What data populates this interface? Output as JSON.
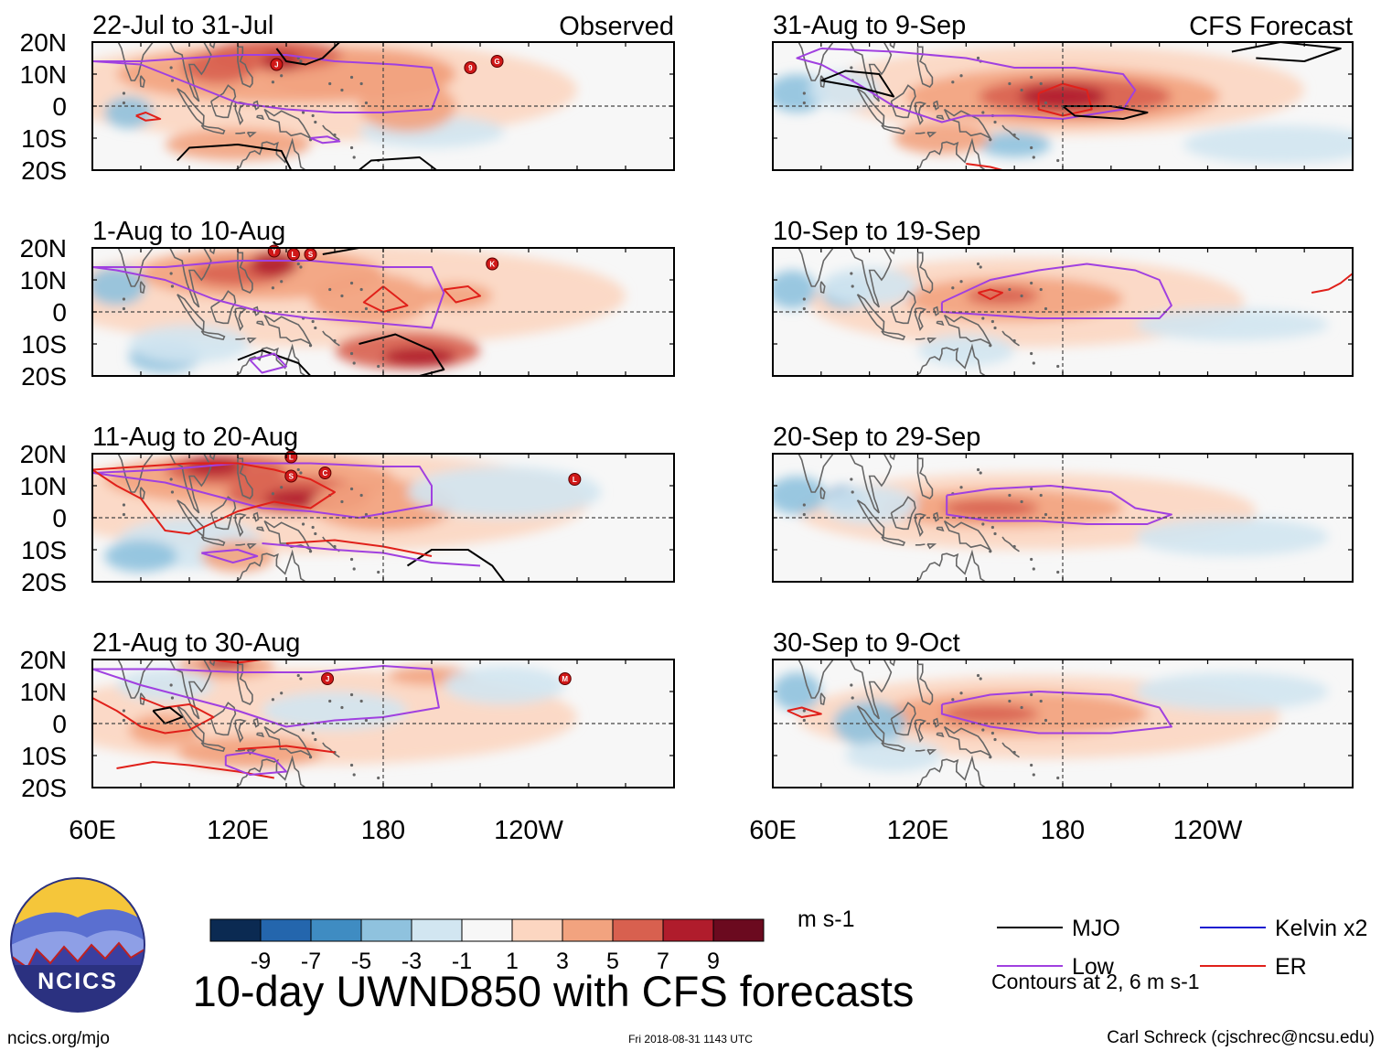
{
  "title": "10-day UWND850 with CFS forecasts",
  "org": {
    "logo_text": "NCICS",
    "url": "ncics.org/mjo"
  },
  "timestamp": "Fri 2018-08-31 1143 UTC",
  "credit": "Carl Schreck (cjschrec@ncsu.edu)",
  "columns": {
    "observed": "Observed",
    "forecast": "CFS Forecast"
  },
  "panels": [
    {
      "label": "22-Jul to 31-Jul",
      "storms": [
        "J",
        "9",
        "G"
      ]
    },
    {
      "label": "31-Aug to 9-Sep",
      "storms": []
    },
    {
      "label": "1-Aug to 10-Aug",
      "storms": [
        "Y",
        "L",
        "S",
        "K"
      ]
    },
    {
      "label": "10-Sep to 19-Sep",
      "storms": []
    },
    {
      "label": "11-Aug to 20-Aug",
      "storms": [
        "L",
        "S",
        "C",
        "L"
      ]
    },
    {
      "label": "20-Sep to 29-Sep",
      "storms": []
    },
    {
      "label": "21-Aug to 30-Aug",
      "storms": [
        "J",
        "M"
      ]
    },
    {
      "label": "30-Sep to 9-Oct",
      "storms": []
    }
  ],
  "lat_labels": [
    "20N",
    "10N",
    "0",
    "10S",
    "20S"
  ],
  "lon_labels": [
    "60E",
    "120E",
    "180",
    "120W"
  ],
  "colorbar": {
    "unit": "m s-1",
    "ticks": [
      "-9",
      "-7",
      "-5",
      "-3",
      "-1",
      "1",
      "3",
      "5",
      "7",
      "9"
    ],
    "colors": [
      "#0b2a52",
      "#2466ad",
      "#3f8cc2",
      "#8fc2de",
      "#d2e6f1",
      "#f7f7f7",
      "#fcd6c1",
      "#f2a37f",
      "#d8604f",
      "#b01c2c",
      "#6b0a1f"
    ]
  },
  "legend": {
    "items": [
      {
        "label": "MJO",
        "color": "#000000"
      },
      {
        "label": "Low",
        "color": "#a040e0"
      },
      {
        "label": "Kelvin x2",
        "color": "#1a1ad0"
      },
      {
        "label": "ER",
        "color": "#e0201a"
      }
    ],
    "note": "Contours at 2, 6 m s-1"
  },
  "colors": {
    "mjo": "#000000",
    "low": "#a040e0",
    "kelvin": "#1a1ad0",
    "er": "#e0201a",
    "coast": "#666666"
  }
}
